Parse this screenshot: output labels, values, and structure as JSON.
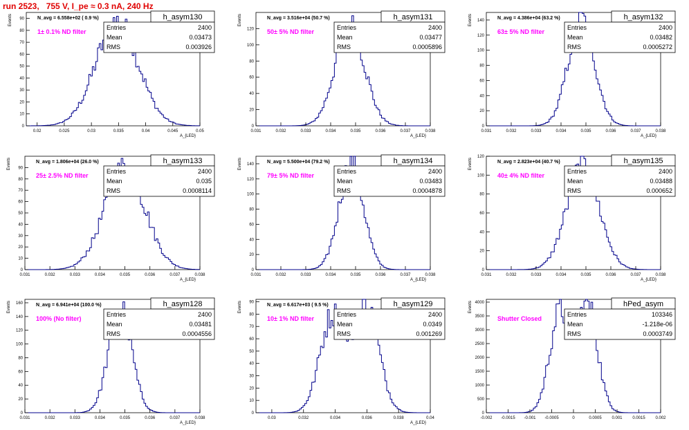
{
  "page": {
    "title": "run 2523,   755 V, I_pe ≈ 0.3 nA, 240 Hz"
  },
  "colors": {
    "histogram": "#00008b",
    "annotation": "#ff00ff",
    "title": "#e00000",
    "axis": "#000000"
  },
  "chart_data": [
    {
      "type": "histogram",
      "name": "h_asym130",
      "stats": {
        "entries_label": "Entries",
        "entries": "2400",
        "mean_label": "Mean",
        "mean": "0.03473",
        "rms_label": "RMS",
        "rms": "0.003926"
      },
      "navg_text": "N_avg = 6.558e+02 ( 0.9 %)",
      "annotation": "1± 0.1% ND filter",
      "xlabel": "A_{LED}",
      "ylabel": "Events",
      "xlim": [
        0.018,
        0.05
      ],
      "ylim": [
        0,
        95
      ],
      "x_ticks": [
        "0.02",
        "0.025",
        "0.03",
        "0.035",
        "0.04",
        "0.045",
        "0.05"
      ],
      "y_ticks": [
        "0",
        "10",
        "20",
        "30",
        "40",
        "50",
        "60",
        "70",
        "80",
        "90"
      ],
      "x_tick_values": [
        0.02,
        0.025,
        0.03,
        0.035,
        0.04,
        0.045,
        0.05
      ],
      "y_tick_values": [
        0,
        10,
        20,
        30,
        40,
        50,
        60,
        70,
        80,
        90
      ],
      "mean_value": 0.03473,
      "sigma": 0.003926,
      "peak": 87
    },
    {
      "type": "histogram",
      "name": "h_asym131",
      "stats": {
        "entries_label": "Entries",
        "entries": "2400",
        "mean_label": "Mean",
        "mean": "0.03477",
        "rms_label": "RMS",
        "rms": "0.0005896"
      },
      "navg_text": "N_avg = 3.516e+04 (50.7 %)",
      "annotation": "50± 5% ND filter",
      "xlabel": "A_{LED}",
      "ylabel": "Events",
      "xlim": [
        0.031,
        0.038
      ],
      "ylim": [
        0,
        140
      ],
      "x_ticks": [
        "0.031",
        "0.032",
        "0.033",
        "0.034",
        "0.035",
        "0.036",
        "0.037",
        "0.038"
      ],
      "y_ticks": [
        "0",
        "20",
        "40",
        "60",
        "80",
        "100",
        "120"
      ],
      "x_tick_values": [
        0.031,
        0.032,
        0.033,
        0.034,
        0.035,
        0.036,
        0.037,
        0.038
      ],
      "y_tick_values": [
        0,
        20,
        40,
        60,
        80,
        100,
        120
      ],
      "mean_value": 0.03477,
      "sigma": 0.0005896,
      "peak": 125
    },
    {
      "type": "histogram",
      "name": "h_asym132",
      "stats": {
        "entries_label": "Entries",
        "entries": "2400",
        "mean_label": "Mean",
        "mean": "0.03482",
        "rms_label": "RMS",
        "rms": "0.0005272"
      },
      "navg_text": "N_avg = 4.386e+04 (63.2 %)",
      "annotation": "63± 5% ND filter",
      "xlabel": "A_{LED}",
      "ylabel": "Events",
      "xlim": [
        0.031,
        0.038
      ],
      "ylim": [
        0,
        150
      ],
      "x_ticks": [
        "0.031",
        "0.032",
        "0.033",
        "0.034",
        "0.035",
        "0.036",
        "0.037",
        "0.038"
      ],
      "y_ticks": [
        "0",
        "20",
        "40",
        "60",
        "80",
        "100",
        "120",
        "140"
      ],
      "x_tick_values": [
        0.031,
        0.032,
        0.033,
        0.034,
        0.035,
        0.036,
        0.037,
        0.038
      ],
      "y_tick_values": [
        0,
        20,
        40,
        60,
        80,
        100,
        120,
        140
      ],
      "mean_value": 0.03482,
      "sigma": 0.0005272,
      "peak": 142
    },
    {
      "type": "histogram",
      "name": "h_asym133",
      "stats": {
        "entries_label": "Entries",
        "entries": "2400",
        "mean_label": "Mean",
        "mean": "0.035",
        "rms_label": "RMS",
        "rms": "0.0008114"
      },
      "navg_text": "N_avg = 1.806e+04 (26.0 %)",
      "annotation": "25± 2.5% ND filter",
      "xlabel": "A_{LED}",
      "ylabel": "Events",
      "xlim": [
        0.031,
        0.038
      ],
      "ylim": [
        0,
        100
      ],
      "x_ticks": [
        "0.031",
        "0.032",
        "0.033",
        "0.034",
        "0.035",
        "0.036",
        "0.037",
        "0.038"
      ],
      "y_ticks": [
        "0",
        "10",
        "20",
        "30",
        "40",
        "50",
        "60",
        "70",
        "80",
        "90"
      ],
      "x_tick_values": [
        0.031,
        0.032,
        0.033,
        0.034,
        0.035,
        0.036,
        0.037,
        0.038
      ],
      "y_tick_values": [
        0,
        10,
        20,
        30,
        40,
        50,
        60,
        70,
        80,
        90
      ],
      "mean_value": 0.035,
      "sigma": 0.0008114,
      "peak": 90
    },
    {
      "type": "histogram",
      "name": "h_asym134",
      "stats": {
        "entries_label": "Entries",
        "entries": "2400",
        "mean_label": "Mean",
        "mean": "0.03483",
        "rms_label": "RMS",
        "rms": "0.0004878"
      },
      "navg_text": "N_avg = 5.500e+04 (79.2 %)",
      "annotation": "79± 5% ND filter",
      "xlabel": "A_{LED}",
      "ylabel": "Events",
      "xlim": [
        0.031,
        0.038
      ],
      "ylim": [
        0,
        150
      ],
      "x_ticks": [
        "0.031",
        "0.032",
        "0.033",
        "0.034",
        "0.035",
        "0.036",
        "0.037",
        "0.038"
      ],
      "y_ticks": [
        "0",
        "20",
        "40",
        "60",
        "80",
        "100",
        "120",
        "140"
      ],
      "x_tick_values": [
        0.031,
        0.032,
        0.033,
        0.034,
        0.035,
        0.036,
        0.037,
        0.038
      ],
      "y_tick_values": [
        0,
        20,
        40,
        60,
        80,
        100,
        120,
        140
      ],
      "mean_value": 0.03483,
      "sigma": 0.0004878,
      "peak": 140
    },
    {
      "type": "histogram",
      "name": "h_asym135",
      "stats": {
        "entries_label": "Entries",
        "entries": "2400",
        "mean_label": "Mean",
        "mean": "0.03488",
        "rms_label": "RMS",
        "rms": "0.000652"
      },
      "navg_text": "N_avg = 2.823e+04 (40.7 %)",
      "annotation": "40± 4% ND filter",
      "xlabel": "A_{LED}",
      "ylabel": "Events",
      "xlim": [
        0.031,
        0.038
      ],
      "ylim": [
        0,
        120
      ],
      "x_ticks": [
        "0.031",
        "0.032",
        "0.033",
        "0.034",
        "0.035",
        "0.036",
        "0.037",
        "0.038"
      ],
      "y_ticks": [
        "0",
        "20",
        "40",
        "60",
        "80",
        "100",
        "120"
      ],
      "x_tick_values": [
        0.031,
        0.032,
        0.033,
        0.034,
        0.035,
        0.036,
        0.037,
        0.038
      ],
      "y_tick_values": [
        0,
        20,
        40,
        60,
        80,
        100,
        120
      ],
      "mean_value": 0.03488,
      "sigma": 0.000652,
      "peak": 110
    },
    {
      "type": "histogram",
      "name": "h_asym128",
      "stats": {
        "entries_label": "Entries",
        "entries": "2400",
        "mean_label": "Mean",
        "mean": "0.03481",
        "rms_label": "RMS",
        "rms": "0.0004556"
      },
      "navg_text": "N_avg = 6.941e+04 (100.0 %)",
      "annotation": "100% (No filter)",
      "xlabel": "A_{LED}",
      "ylabel": "Events",
      "xlim": [
        0.031,
        0.038
      ],
      "ylim": [
        0,
        165
      ],
      "x_ticks": [
        "0.031",
        "0.032",
        "0.033",
        "0.034",
        "0.035",
        "0.036",
        "0.037",
        "0.038"
      ],
      "y_ticks": [
        "0",
        "20",
        "40",
        "60",
        "80",
        "100",
        "120",
        "140",
        "160"
      ],
      "x_tick_values": [
        0.031,
        0.032,
        0.033,
        0.034,
        0.035,
        0.036,
        0.037,
        0.038
      ],
      "y_tick_values": [
        0,
        20,
        40,
        60,
        80,
        100,
        120,
        140,
        160
      ],
      "mean_value": 0.03481,
      "sigma": 0.0004556,
      "peak": 155
    },
    {
      "type": "histogram",
      "name": "h_asym129",
      "stats": {
        "entries_label": "Entries",
        "entries": "2400",
        "mean_label": "Mean",
        "mean": "0.0349",
        "rms_label": "RMS",
        "rms": "0.001269"
      },
      "navg_text": "N_avg = 6.617e+03 ( 9.5 %)",
      "annotation": "10± 1% ND filter",
      "xlabel": "A_{LED}",
      "ylabel": "Events",
      "xlim": [
        0.029,
        0.04
      ],
      "ylim": [
        0,
        92
      ],
      "x_ticks": [
        "0.03",
        "0.032",
        "0.034",
        "0.036",
        "0.038",
        "0.04"
      ],
      "y_ticks": [
        "0",
        "10",
        "20",
        "30",
        "40",
        "50",
        "60",
        "70",
        "80",
        "90"
      ],
      "x_tick_values": [
        0.03,
        0.032,
        0.034,
        0.036,
        0.038,
        0.04
      ],
      "y_tick_values": [
        0,
        10,
        20,
        30,
        40,
        50,
        60,
        70,
        80,
        90
      ],
      "mean_value": 0.0349,
      "sigma": 0.001269,
      "peak": 85,
      "bimodal": true
    },
    {
      "type": "histogram",
      "name": "hPed_asym",
      "stats": {
        "entries_label": "Entries",
        "entries": "103346",
        "mean_label": "Mean",
        "mean": "-1.218e-06",
        "rms_label": "RMS",
        "rms": "0.0003749"
      },
      "navg_text": "",
      "annotation": "Shutter Closed",
      "xlabel": "",
      "ylabel": "Events",
      "xlim": [
        -0.002,
        0.002
      ],
      "ylim": [
        0,
        4100
      ],
      "x_ticks": [
        "-0.002",
        "-0.0015",
        "-0.001",
        "-0.0005",
        "0",
        "0.0005",
        "0.001",
        "0.0015",
        "0.002"
      ],
      "y_ticks": [
        "0",
        "500",
        "1000",
        "1500",
        "2000",
        "2500",
        "3000",
        "3500",
        "4000"
      ],
      "x_tick_values": [
        -0.002,
        -0.0015,
        -0.001,
        -0.0005,
        0,
        0.0005,
        0.001,
        0.0015,
        0.002
      ],
      "y_tick_values": [
        0,
        500,
        1000,
        1500,
        2000,
        2500,
        3000,
        3500,
        4000
      ],
      "mean_value": 0.0,
      "sigma": 0.0003749,
      "peak": 3900,
      "bimodal": true
    }
  ]
}
